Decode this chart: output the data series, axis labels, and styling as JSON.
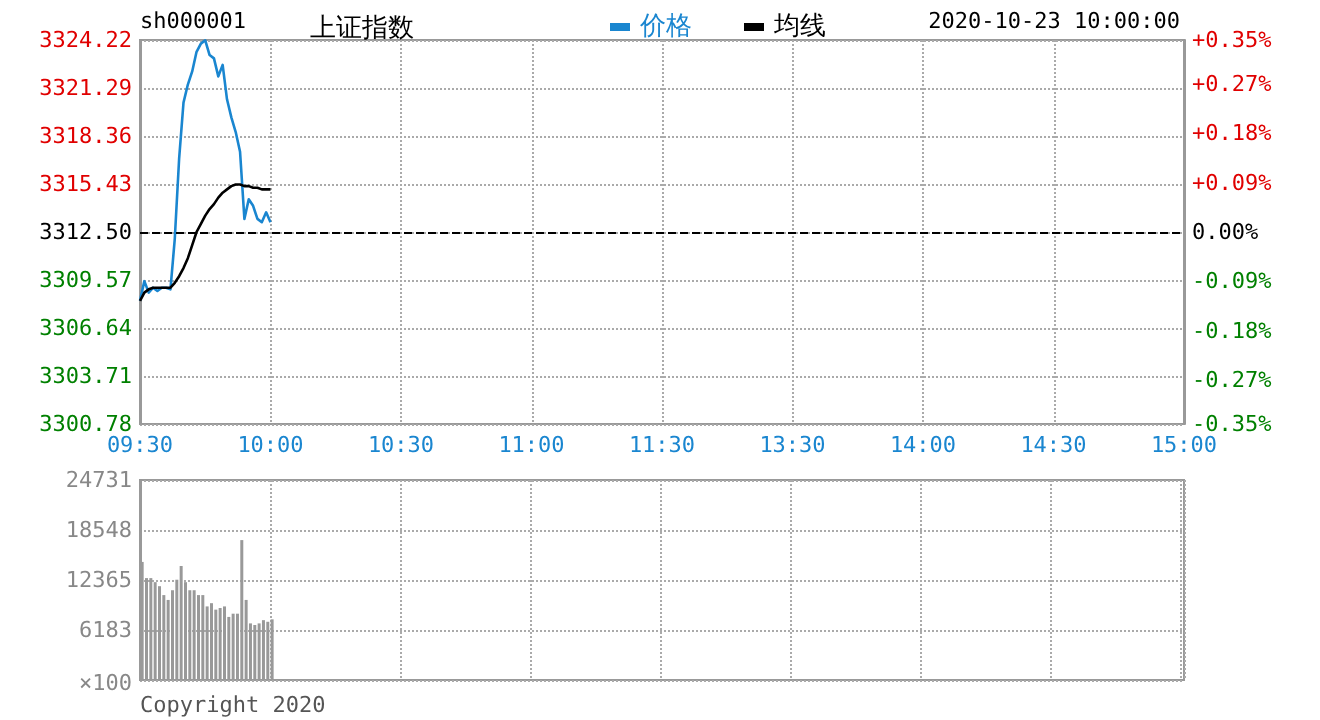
{
  "chart_data": [
    {
      "type": "line",
      "title": "上证指数",
      "annotations": [
        "sh000001",
        "2020-10-23 10:00:00"
      ],
      "legend": "top",
      "marker": "none",
      "grid": true,
      "categories": [
        "09:30",
        null,
        null,
        null,
        null,
        null,
        null,
        null,
        null,
        null,
        null,
        null,
        null,
        null,
        null,
        null,
        null,
        null,
        null,
        null,
        null,
        null,
        null,
        null,
        null,
        null,
        null,
        null,
        null,
        null,
        "10:00",
        null,
        null,
        null,
        null,
        null,
        null,
        null,
        null,
        null,
        null,
        null,
        null,
        null,
        null,
        null,
        null,
        null,
        null,
        null,
        null,
        null,
        null,
        null,
        null,
        null,
        null,
        null,
        null,
        null,
        "10:30",
        null,
        null,
        null,
        null,
        null,
        null,
        null,
        null,
        null,
        null,
        null,
        null,
        null,
        null,
        null,
        null,
        null,
        null,
        null,
        null,
        null,
        null,
        null,
        null,
        null,
        null,
        null,
        null,
        null,
        "11:00",
        null,
        null,
        null,
        null,
        null,
        null,
        null,
        null,
        null,
        null,
        null,
        null,
        null,
        null,
        null,
        null,
        null,
        null,
        null,
        null,
        null,
        null,
        null,
        null,
        null,
        null,
        null,
        null,
        null,
        "11:30",
        null,
        null,
        null,
        null,
        null,
        null,
        null,
        null,
        null,
        null,
        null,
        null,
        null,
        null,
        null,
        null,
        null,
        null,
        null,
        null,
        null,
        null,
        null,
        null,
        null,
        null,
        null,
        null,
        null,
        "13:30",
        null,
        null,
        null,
        null,
        null,
        null,
        null,
        null,
        null,
        null,
        null,
        null,
        null,
        null,
        null,
        null,
        null,
        null,
        null,
        null,
        null,
        null,
        null,
        null,
        null,
        null,
        null,
        null,
        null,
        "14:00",
        null,
        null,
        null,
        null,
        null,
        null,
        null,
        null,
        null,
        null,
        null,
        null,
        null,
        null,
        null,
        null,
        null,
        null,
        null,
        null,
        null,
        null,
        null,
        null,
        null,
        null,
        null,
        null,
        null,
        "14:30",
        null,
        null,
        null,
        null,
        null,
        null,
        null,
        null,
        null,
        null,
        null,
        null,
        null,
        null,
        null,
        null,
        null,
        null,
        null,
        null,
        null,
        null,
        null,
        null,
        null,
        null,
        null,
        null,
        null,
        "15:00"
      ],
      "series": [
        {
          "name": "价格",
          "color": "#1a86d0",
          "values": [
            3308.3,
            3309.5,
            3308.8,
            3309.1,
            3308.9,
            3309.1,
            3309.1,
            3309.0,
            3312.1,
            3317.0,
            3320.4,
            3321.5,
            3322.3,
            3323.5,
            3324.0,
            3324.2,
            3323.3,
            3323.1,
            3322.0,
            3322.7,
            3320.6,
            3319.5,
            3318.6,
            3317.4,
            3313.3,
            3314.5,
            3314.1,
            3313.3,
            3313.1,
            3313.7,
            3313.1,
            null,
            null,
            null,
            null,
            null,
            null,
            null,
            null,
            null,
            null,
            null,
            null,
            null,
            null,
            null,
            null,
            null,
            null,
            null,
            null,
            null,
            null,
            null,
            null,
            null,
            null,
            null,
            null,
            null,
            null,
            null,
            null,
            null,
            null,
            null,
            null,
            null,
            null,
            null,
            null,
            null,
            null,
            null,
            null,
            null,
            null,
            null,
            null,
            null,
            null,
            null,
            null,
            null,
            null,
            null,
            null,
            null,
            null,
            null,
            null,
            null,
            null,
            null,
            null,
            null,
            null,
            null,
            null,
            null,
            null,
            null,
            null,
            null,
            null,
            null,
            null,
            null,
            null,
            null,
            null,
            null,
            null,
            null,
            null,
            null,
            null,
            null,
            null,
            null,
            null,
            null,
            null,
            null,
            null,
            null,
            null,
            null,
            null,
            null,
            null,
            null,
            null,
            null,
            null,
            null,
            null,
            null,
            null,
            null,
            null,
            null,
            null,
            null,
            null,
            null,
            null,
            null,
            null,
            null,
            null,
            null,
            null,
            null,
            null,
            null,
            null,
            null,
            null,
            null,
            null,
            null,
            null,
            null,
            null,
            null,
            null,
            null,
            null,
            null,
            null,
            null,
            null,
            null,
            null,
            null,
            null,
            null,
            null,
            null,
            null,
            null,
            null,
            null,
            null,
            null,
            null,
            null,
            null,
            null,
            null,
            null,
            null,
            null,
            null,
            null,
            null,
            null,
            null,
            null,
            null,
            null,
            null,
            null,
            null,
            null,
            null,
            null,
            null,
            null,
            null,
            null,
            null,
            null,
            null,
            null,
            null,
            null,
            null,
            null,
            null,
            null,
            null,
            null,
            null,
            null,
            null,
            null,
            null,
            null,
            null,
            null,
            null,
            null,
            null,
            null,
            null,
            null,
            null,
            null,
            null
          ]
        },
        {
          "name": "均线",
          "color": "#000000",
          "values": [
            3308.3,
            3308.8,
            3309.0,
            3309.1,
            3309.1,
            3309.1,
            3309.1,
            3309.1,
            3309.4,
            3309.8,
            3310.3,
            3310.9,
            3311.7,
            3312.5,
            3313.0,
            3313.5,
            3313.9,
            3314.2,
            3314.6,
            3314.9,
            3315.1,
            3315.3,
            3315.4,
            3315.4,
            3315.3,
            3315.3,
            3315.2,
            3315.2,
            3315.1,
            3315.1,
            3315.1,
            null,
            null,
            null,
            null,
            null,
            null,
            null,
            null,
            null,
            null,
            null,
            null,
            null,
            null,
            null,
            null,
            null,
            null,
            null,
            null,
            null,
            null,
            null,
            null,
            null,
            null,
            null,
            null,
            null,
            null,
            null,
            null,
            null,
            null,
            null,
            null,
            null,
            null,
            null,
            null,
            null,
            null,
            null,
            null,
            null,
            null,
            null,
            null,
            null,
            null,
            null,
            null,
            null,
            null,
            null,
            null,
            null,
            null,
            null,
            null,
            null,
            null,
            null,
            null,
            null,
            null,
            null,
            null,
            null,
            null,
            null,
            null,
            null,
            null,
            null,
            null,
            null,
            null,
            null,
            null,
            null,
            null,
            null,
            null,
            null,
            null,
            null,
            null,
            null,
            null,
            null,
            null,
            null,
            null,
            null,
            null,
            null,
            null,
            null,
            null,
            null,
            null,
            null,
            null,
            null,
            null,
            null,
            null,
            null,
            null,
            null,
            null,
            null,
            null,
            null,
            null,
            null,
            null,
            null,
            null,
            null,
            null,
            null,
            null,
            null,
            null,
            null,
            null,
            null,
            null,
            null,
            null,
            null,
            null,
            null,
            null,
            null,
            null,
            null,
            null,
            null,
            null,
            null,
            null,
            null,
            null,
            null,
            null,
            null,
            null,
            null,
            null,
            null,
            null,
            null,
            null,
            null,
            null,
            null,
            null,
            null,
            null,
            null,
            null,
            null,
            null,
            null,
            null,
            null,
            null,
            null,
            null,
            null,
            null,
            null,
            null,
            null,
            null,
            null,
            null,
            null,
            null,
            null,
            null,
            null,
            null,
            null,
            null,
            null,
            null,
            null,
            null,
            null,
            null,
            null,
            null,
            null,
            null,
            null,
            null,
            null,
            null,
            null,
            null,
            null,
            null,
            null,
            null,
            null,
            null
          ]
        }
      ],
      "ylim": [
        3300.78,
        3324.22
      ],
      "yticks": [
        3300.78,
        3303.71,
        3306.64,
        3309.57,
        {
          "value": 3312.5,
          "label": "3312.50"
        },
        3315.43,
        3318.36,
        3321.29,
        3324.22
      ],
      "y2lim": [
        -0.35,
        0.35
      ],
      "y2ticks": [
        {
          "value": -0.35,
          "label": "-0.35%"
        },
        {
          "value": -0.27,
          "label": "-0.27%"
        },
        {
          "value": -0.18,
          "label": "-0.18%"
        },
        {
          "value": -0.09,
          "label": "-0.09%"
        },
        {
          "value": 0,
          "label": "0.00%"
        },
        {
          "value": 0.09,
          "label": "+0.09%"
        },
        {
          "value": 0.18,
          "label": "+0.18%"
        },
        {
          "value": 0.27,
          "label": "+0.27%"
        },
        {
          "value": 0.35,
          "label": "+0.35%"
        }
      ],
      "ref_lines": [
        {
          "axis": "y",
          "value": 3312.5,
          "color": "#000000",
          "line_style": "dashed"
        }
      ]
    },
    {
      "type": "bar",
      "annotations": [
        "Copyright 2020"
      ],
      "grid": true,
      "tick_labels": "y",
      "color": "#999999",
      "ylabel": "×100",
      "categories": [
        null,
        null,
        null,
        null,
        null,
        null,
        null,
        null,
        null,
        null,
        null,
        null,
        null,
        null,
        null,
        null,
        null,
        null,
        null,
        null,
        null,
        null,
        null,
        null,
        null,
        null,
        null,
        null,
        null,
        null,
        null,
        null,
        null,
        null,
        null,
        null,
        null,
        null,
        null,
        null,
        null,
        null,
        null,
        null,
        null,
        null,
        null,
        null,
        null,
        null,
        null,
        null,
        null,
        null,
        null,
        null,
        null,
        null,
        null,
        null,
        null,
        null,
        null,
        null,
        null,
        null,
        null,
        null,
        null,
        null,
        null,
        null,
        null,
        null,
        null,
        null,
        null,
        null,
        null,
        null,
        null,
        null,
        null,
        null,
        null,
        null,
        null,
        null,
        null,
        null,
        null,
        null,
        null,
        null,
        null,
        null,
        null,
        null,
        null,
        null,
        null,
        null,
        null,
        null,
        null,
        null,
        null,
        null,
        null,
        null,
        null,
        null,
        null,
        null,
        null,
        null,
        null,
        null,
        null,
        null,
        null,
        null,
        null,
        null,
        null,
        null,
        null,
        null,
        null,
        null,
        null,
        null,
        null,
        null,
        null,
        null,
        null,
        null,
        null,
        null,
        null,
        null,
        null,
        null,
        null,
        null,
        null,
        null,
        null,
        null,
        null,
        null,
        null,
        null,
        null,
        null,
        null,
        null,
        null,
        null,
        null,
        null,
        null,
        null,
        null,
        null,
        null,
        null,
        null,
        null,
        null,
        null,
        null,
        null,
        null,
        null,
        null,
        null,
        null,
        null,
        null,
        null,
        null,
        null,
        null,
        null,
        null,
        null,
        null,
        null,
        null,
        null,
        null,
        null,
        null,
        null,
        null,
        null,
        null,
        null,
        null,
        null,
        null,
        null,
        null,
        null,
        null,
        null,
        null,
        null,
        null,
        null,
        null,
        null,
        null,
        null,
        null,
        null,
        null,
        null,
        null,
        null,
        null,
        null,
        null,
        null,
        null,
        null,
        null,
        null,
        null,
        null,
        null,
        null,
        null,
        null,
        null,
        null,
        null,
        null,
        null
      ],
      "values": [
        14600,
        12600,
        12600,
        12100,
        11600,
        10500,
        9900,
        11100,
        12400,
        14100,
        12100,
        11100,
        11100,
        10500,
        10500,
        9100,
        9500,
        8700,
        8900,
        9100,
        7800,
        8200,
        8200,
        17300,
        9900,
        7000,
        6800,
        7000,
        7400,
        7200,
        7500,
        null,
        null,
        null,
        null,
        null,
        null,
        null,
        null,
        null,
        null,
        null,
        null,
        null,
        null,
        null,
        null,
        null,
        null,
        null,
        null,
        null,
        null,
        null,
        null,
        null,
        null,
        null,
        null,
        null,
        null,
        null,
        null,
        null,
        null,
        null,
        null,
        null,
        null,
        null,
        null,
        null,
        null,
        null,
        null,
        null,
        null,
        null,
        null,
        null,
        null,
        null,
        null,
        null,
        null,
        null,
        null,
        null,
        null,
        null,
        null,
        null,
        null,
        null,
        null,
        null,
        null,
        null,
        null,
        null,
        null,
        null,
        null,
        null,
        null,
        null,
        null,
        null,
        null,
        null,
        null,
        null,
        null,
        null,
        null,
        null,
        null,
        null,
        null,
        null,
        null,
        null,
        null,
        null,
        null,
        null,
        null,
        null,
        null,
        null,
        null,
        null,
        null,
        null,
        null,
        null,
        null,
        null,
        null,
        null,
        null,
        null,
        null,
        null,
        null,
        null,
        null,
        null,
        null,
        null,
        null,
        null,
        null,
        null,
        null,
        null,
        null,
        null,
        null,
        null,
        null,
        null,
        null,
        null,
        null,
        null,
        null,
        null,
        null,
        null,
        null,
        null,
        null,
        null,
        null,
        null,
        null,
        null,
        null,
        null,
        null,
        null,
        null,
        null,
        null,
        null,
        null,
        null,
        null,
        null,
        null,
        null,
        null,
        null,
        null,
        null,
        null,
        null,
        null,
        null,
        null,
        null,
        null,
        null,
        null,
        null,
        null,
        null,
        null,
        null,
        null,
        null,
        null,
        null,
        null,
        null,
        null,
        null,
        null,
        null,
        null,
        null,
        null,
        null,
        null,
        null,
        null,
        null,
        null,
        null,
        null,
        null,
        null,
        null,
        null,
        null,
        null,
        null,
        null,
        null,
        null
      ],
      "ylim": [
        0,
        24731
      ],
      "yticks": [
        {
          "value": 0,
          "label": null
        },
        6183,
        12365,
        18548,
        24731
      ]
    }
  ]
}
